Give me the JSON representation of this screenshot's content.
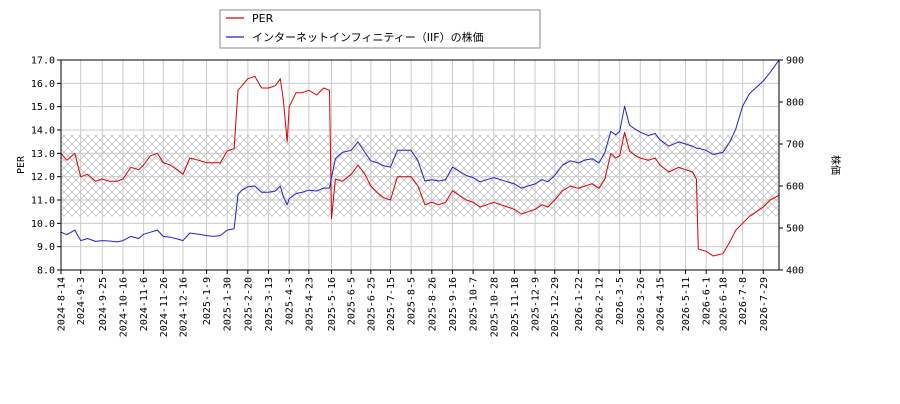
{
  "chart_data": {
    "type": "line",
    "ylabel_left": "PER",
    "ylabel_right": "株価",
    "ylim_left": [
      8.0,
      17.0
    ],
    "ylim_right": [
      400,
      900
    ],
    "yticks_left": [
      "8.0",
      "9.0",
      "10.0",
      "11.0",
      "12.0",
      "13.0",
      "14.0",
      "15.0",
      "16.0",
      "17.0"
    ],
    "yticks_right": [
      "400",
      "500",
      "600",
      "700",
      "800",
      "900"
    ],
    "x_start": "2024-08-14",
    "x_end": "2026-08-14",
    "xticks": [
      "2024-8-14",
      "2024-9-3",
      "2024-9-25",
      "2024-10-16",
      "2024-11-6",
      "2024-11-26",
      "2024-12-16",
      "2025-1-9",
      "2025-1-30",
      "2025-2-20",
      "2025-3-13",
      "2025-4-3",
      "2025-4-23",
      "2025-5-16",
      "2025-6-5",
      "2025-6-25",
      "2025-7-15",
      "2025-8-5",
      "2025-8-26",
      "2025-9-16",
      "2025-10-7",
      "2025-10-28",
      "2025-11-18",
      "2025-12-9",
      "2025-12-29",
      "2026-1-22",
      "2026-2-12",
      "2026-3-5",
      "2026-3-26",
      "2026-4-15",
      "2026-5-11",
      "2026-6-1",
      "2026-6-18",
      "2026-7-8",
      "2026-7-29"
    ],
    "band_left": [
      10.3,
      13.8
    ],
    "grid": true,
    "legend_position": "top-left outside",
    "series": [
      {
        "name": "PER",
        "axis": "left",
        "color": "#dd0000",
        "points": [
          [
            "2024-08-14",
            13.0
          ],
          [
            "2024-08-20",
            12.7
          ],
          [
            "2024-08-28",
            13.0
          ],
          [
            "2024-09-03",
            12.0
          ],
          [
            "2024-09-10",
            12.1
          ],
          [
            "2024-09-18",
            11.8
          ],
          [
            "2024-09-25",
            11.9
          ],
          [
            "2024-10-02",
            11.8
          ],
          [
            "2024-10-10",
            11.8
          ],
          [
            "2024-10-16",
            11.9
          ],
          [
            "2024-10-24",
            12.4
          ],
          [
            "2024-11-01",
            12.3
          ],
          [
            "2024-11-06",
            12.5
          ],
          [
            "2024-11-13",
            12.9
          ],
          [
            "2024-11-20",
            13.0
          ],
          [
            "2024-11-26",
            12.6
          ],
          [
            "2024-12-03",
            12.5
          ],
          [
            "2024-12-10",
            12.3
          ],
          [
            "2024-12-16",
            12.1
          ],
          [
            "2024-12-23",
            12.8
          ],
          [
            "2025-01-01",
            12.7
          ],
          [
            "2025-01-09",
            12.6
          ],
          [
            "2025-01-16",
            12.6
          ],
          [
            "2025-01-23",
            12.6
          ],
          [
            "2025-01-30",
            13.1
          ],
          [
            "2025-02-06",
            13.2
          ],
          [
            "2025-02-10",
            15.7
          ],
          [
            "2025-02-14",
            15.9
          ],
          [
            "2025-02-20",
            16.2
          ],
          [
            "2025-02-27",
            16.3
          ],
          [
            "2025-03-06",
            15.8
          ],
          [
            "2025-03-13",
            15.8
          ],
          [
            "2025-03-20",
            15.9
          ],
          [
            "2025-03-25",
            16.2
          ],
          [
            "2025-03-28",
            15.3
          ],
          [
            "2025-04-01",
            13.5
          ],
          [
            "2025-04-03",
            15.0
          ],
          [
            "2025-04-10",
            15.6
          ],
          [
            "2025-04-16",
            15.6
          ],
          [
            "2025-04-23",
            15.7
          ],
          [
            "2025-05-01",
            15.5
          ],
          [
            "2025-05-08",
            15.8
          ],
          [
            "2025-05-14",
            15.7
          ],
          [
            "2025-05-16",
            10.2
          ],
          [
            "2025-05-20",
            11.9
          ],
          [
            "2025-05-27",
            11.8
          ],
          [
            "2025-06-05",
            12.1
          ],
          [
            "2025-06-12",
            12.5
          ],
          [
            "2025-06-19",
            12.1
          ],
          [
            "2025-06-25",
            11.6
          ],
          [
            "2025-07-02",
            11.3
          ],
          [
            "2025-07-08",
            11.1
          ],
          [
            "2025-07-15",
            11.0
          ],
          [
            "2025-07-22",
            12.0
          ],
          [
            "2025-07-29",
            12.0
          ],
          [
            "2025-08-05",
            12.0
          ],
          [
            "2025-08-12",
            11.6
          ],
          [
            "2025-08-19",
            10.8
          ],
          [
            "2025-08-26",
            10.9
          ],
          [
            "2025-09-02",
            10.8
          ],
          [
            "2025-09-09",
            10.9
          ],
          [
            "2025-09-16",
            11.4
          ],
          [
            "2025-09-23",
            11.2
          ],
          [
            "2025-09-30",
            11.0
          ],
          [
            "2025-10-07",
            10.9
          ],
          [
            "2025-10-14",
            10.7
          ],
          [
            "2025-10-21",
            10.8
          ],
          [
            "2025-10-28",
            10.9
          ],
          [
            "2025-11-04",
            10.8
          ],
          [
            "2025-11-11",
            10.7
          ],
          [
            "2025-11-18",
            10.6
          ],
          [
            "2025-11-25",
            10.4
          ],
          [
            "2025-12-02",
            10.5
          ],
          [
            "2025-12-09",
            10.6
          ],
          [
            "2025-12-16",
            10.8
          ],
          [
            "2025-12-22",
            10.7
          ],
          [
            "2025-12-29",
            11.0
          ],
          [
            "2026-01-06",
            11.4
          ],
          [
            "2026-01-14",
            11.6
          ],
          [
            "2026-01-22",
            11.5
          ],
          [
            "2026-01-29",
            11.6
          ],
          [
            "2026-02-05",
            11.7
          ],
          [
            "2026-02-12",
            11.5
          ],
          [
            "2026-02-18",
            11.9
          ],
          [
            "2026-02-24",
            13.0
          ],
          [
            "2026-03-01",
            12.8
          ],
          [
            "2026-03-05",
            12.9
          ],
          [
            "2026-03-10",
            13.9
          ],
          [
            "2026-03-15",
            13.1
          ],
          [
            "2026-03-21",
            12.9
          ],
          [
            "2026-03-26",
            12.8
          ],
          [
            "2026-04-03",
            12.7
          ],
          [
            "2026-04-10",
            12.8
          ],
          [
            "2026-04-15",
            12.5
          ],
          [
            "2026-04-24",
            12.2
          ],
          [
            "2026-05-04",
            12.4
          ],
          [
            "2026-05-11",
            12.3
          ],
          [
            "2026-05-18",
            12.2
          ],
          [
            "2026-05-22",
            11.9
          ],
          [
            "2026-05-24",
            8.9
          ],
          [
            "2026-06-01",
            8.8
          ],
          [
            "2026-06-08",
            8.6
          ],
          [
            "2026-06-18",
            8.7
          ],
          [
            "2026-06-25",
            9.2
          ],
          [
            "2026-07-01",
            9.7
          ],
          [
            "2026-07-08",
            10.0
          ],
          [
            "2026-07-15",
            10.3
          ],
          [
            "2026-07-22",
            10.5
          ],
          [
            "2026-07-29",
            10.7
          ],
          [
            "2026-08-05",
            11.0
          ],
          [
            "2026-08-14",
            11.2
          ]
        ]
      },
      {
        "name": "インターネットインフィニティー（IIF）の株価",
        "axis": "right",
        "color": "#2222cc",
        "points": [
          [
            "2024-08-14",
            490
          ],
          [
            "2024-08-20",
            484
          ],
          [
            "2024-08-28",
            495
          ],
          [
            "2024-09-03",
            470
          ],
          [
            "2024-09-10",
            475
          ],
          [
            "2024-09-18",
            468
          ],
          [
            "2024-09-25",
            470
          ],
          [
            "2024-10-02",
            469
          ],
          [
            "2024-10-10",
            467
          ],
          [
            "2024-10-16",
            470
          ],
          [
            "2024-10-24",
            480
          ],
          [
            "2024-11-01",
            475
          ],
          [
            "2024-11-06",
            485
          ],
          [
            "2024-11-13",
            490
          ],
          [
            "2024-11-20",
            495
          ],
          [
            "2024-11-26",
            480
          ],
          [
            "2024-12-03",
            478
          ],
          [
            "2024-12-10",
            474
          ],
          [
            "2024-12-16",
            470
          ],
          [
            "2024-12-23",
            488
          ],
          [
            "2025-01-01",
            485
          ],
          [
            "2025-01-09",
            482
          ],
          [
            "2025-01-16",
            480
          ],
          [
            "2025-01-23",
            482
          ],
          [
            "2025-01-30",
            495
          ],
          [
            "2025-02-06",
            498
          ],
          [
            "2025-02-10",
            580
          ],
          [
            "2025-02-14",
            590
          ],
          [
            "2025-02-20",
            598
          ],
          [
            "2025-02-27",
            600
          ],
          [
            "2025-03-06",
            585
          ],
          [
            "2025-03-13",
            585
          ],
          [
            "2025-03-20",
            588
          ],
          [
            "2025-03-25",
            600
          ],
          [
            "2025-03-28",
            575
          ],
          [
            "2025-04-01",
            555
          ],
          [
            "2025-04-03",
            570
          ],
          [
            "2025-04-10",
            582
          ],
          [
            "2025-04-16",
            585
          ],
          [
            "2025-04-23",
            590
          ],
          [
            "2025-05-01",
            588
          ],
          [
            "2025-05-08",
            595
          ],
          [
            "2025-05-14",
            595
          ],
          [
            "2025-05-16",
            620
          ],
          [
            "2025-05-20",
            665
          ],
          [
            "2025-05-27",
            680
          ],
          [
            "2025-06-05",
            685
          ],
          [
            "2025-06-12",
            705
          ],
          [
            "2025-06-19",
            680
          ],
          [
            "2025-06-25",
            660
          ],
          [
            "2025-07-02",
            655
          ],
          [
            "2025-07-08",
            648
          ],
          [
            "2025-07-15",
            645
          ],
          [
            "2025-07-22",
            685
          ],
          [
            "2025-07-29",
            685
          ],
          [
            "2025-08-05",
            685
          ],
          [
            "2025-08-12",
            660
          ],
          [
            "2025-08-19",
            612
          ],
          [
            "2025-08-26",
            615
          ],
          [
            "2025-09-02",
            612
          ],
          [
            "2025-09-09",
            615
          ],
          [
            "2025-09-16",
            645
          ],
          [
            "2025-09-23",
            635
          ],
          [
            "2025-09-30",
            625
          ],
          [
            "2025-10-07",
            620
          ],
          [
            "2025-10-14",
            610
          ],
          [
            "2025-10-21",
            615
          ],
          [
            "2025-10-28",
            620
          ],
          [
            "2025-11-04",
            615
          ],
          [
            "2025-11-11",
            610
          ],
          [
            "2025-11-18",
            605
          ],
          [
            "2025-11-25",
            595
          ],
          [
            "2025-12-02",
            600
          ],
          [
            "2025-12-09",
            605
          ],
          [
            "2025-12-16",
            615
          ],
          [
            "2025-12-22",
            610
          ],
          [
            "2025-12-29",
            625
          ],
          [
            "2026-01-06",
            650
          ],
          [
            "2026-01-14",
            660
          ],
          [
            "2026-01-22",
            655
          ],
          [
            "2026-01-29",
            662
          ],
          [
            "2026-02-05",
            665
          ],
          [
            "2026-02-12",
            655
          ],
          [
            "2026-02-18",
            680
          ],
          [
            "2026-02-24",
            730
          ],
          [
            "2026-03-01",
            722
          ],
          [
            "2026-03-05",
            730
          ],
          [
            "2026-03-10",
            790
          ],
          [
            "2026-03-15",
            745
          ],
          [
            "2026-03-21",
            735
          ],
          [
            "2026-03-26",
            728
          ],
          [
            "2026-04-03",
            720
          ],
          [
            "2026-04-10",
            725
          ],
          [
            "2026-04-15",
            710
          ],
          [
            "2026-04-24",
            695
          ],
          [
            "2026-05-04",
            705
          ],
          [
            "2026-05-11",
            700
          ],
          [
            "2026-05-18",
            695
          ],
          [
            "2026-05-22",
            690
          ],
          [
            "2026-05-24",
            690
          ],
          [
            "2026-06-01",
            685
          ],
          [
            "2026-06-08",
            675
          ],
          [
            "2026-06-18",
            680
          ],
          [
            "2026-06-25",
            705
          ],
          [
            "2026-07-01",
            735
          ],
          [
            "2026-07-08",
            790
          ],
          [
            "2026-07-15",
            820
          ],
          [
            "2026-07-22",
            835
          ],
          [
            "2026-07-29",
            850
          ],
          [
            "2026-08-05",
            870
          ],
          [
            "2026-08-14",
            900
          ]
        ]
      }
    ]
  }
}
